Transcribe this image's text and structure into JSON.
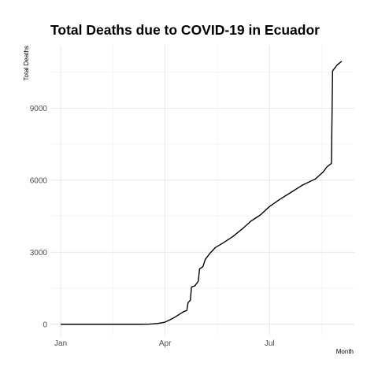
{
  "chart_data": {
    "type": "line",
    "title": "Total Deaths due to COVID-19 in Ecuador",
    "xlabel": "Month",
    "ylabel": "Total Deaths",
    "x_ticks": [
      {
        "label": "Jan",
        "date": "2020-01-01"
      },
      {
        "label": "Apr",
        "date": "2020-04-01"
      },
      {
        "label": "Jul",
        "date": "2020-07-01"
      }
    ],
    "y_ticks": [
      0,
      3000,
      6000,
      9000
    ],
    "xlim": [
      "2019-12-23",
      "2020-09-13"
    ],
    "ylim": [
      -500,
      11600
    ],
    "grid": true,
    "legend": "none",
    "series": [
      {
        "points": [
          {
            "x": "2020-01-01",
            "y": 0
          },
          {
            "x": "2020-03-12",
            "y": 0
          },
          {
            "x": "2020-03-13",
            "y": 1
          },
          {
            "x": "2020-03-17",
            "y": 2
          },
          {
            "x": "2020-03-21",
            "y": 14
          },
          {
            "x": "2020-03-25",
            "y": 30
          },
          {
            "x": "2020-03-29",
            "y": 60
          },
          {
            "x": "2020-04-01",
            "y": 90
          },
          {
            "x": "2020-04-05",
            "y": 180
          },
          {
            "x": "2020-04-09",
            "y": 280
          },
          {
            "x": "2020-04-13",
            "y": 400
          },
          {
            "x": "2020-04-17",
            "y": 520
          },
          {
            "x": "2020-04-20",
            "y": 580
          },
          {
            "x": "2020-04-21",
            "y": 900
          },
          {
            "x": "2020-04-23",
            "y": 1000
          },
          {
            "x": "2020-04-24",
            "y": 1550
          },
          {
            "x": "2020-04-27",
            "y": 1600
          },
          {
            "x": "2020-04-30",
            "y": 1800
          },
          {
            "x": "2020-05-01",
            "y": 2300
          },
          {
            "x": "2020-05-04",
            "y": 2400
          },
          {
            "x": "2020-05-06",
            "y": 2700
          },
          {
            "x": "2020-05-10",
            "y": 2950
          },
          {
            "x": "2020-05-15",
            "y": 3200
          },
          {
            "x": "2020-05-22",
            "y": 3400
          },
          {
            "x": "2020-05-30",
            "y": 3650
          },
          {
            "x": "2020-06-08",
            "y": 4000
          },
          {
            "x": "2020-06-15",
            "y": 4300
          },
          {
            "x": "2020-06-23",
            "y": 4550
          },
          {
            "x": "2020-07-01",
            "y": 4900
          },
          {
            "x": "2020-07-10",
            "y": 5200
          },
          {
            "x": "2020-07-20",
            "y": 5500
          },
          {
            "x": "2020-07-30",
            "y": 5800
          },
          {
            "x": "2020-08-10",
            "y": 6050
          },
          {
            "x": "2020-08-17",
            "y": 6350
          },
          {
            "x": "2020-08-20",
            "y": 6550
          },
          {
            "x": "2020-08-24",
            "y": 6700
          },
          {
            "x": "2020-08-25",
            "y": 10550
          },
          {
            "x": "2020-08-29",
            "y": 10800
          },
          {
            "x": "2020-09-02",
            "y": 10950
          }
        ]
      }
    ]
  }
}
